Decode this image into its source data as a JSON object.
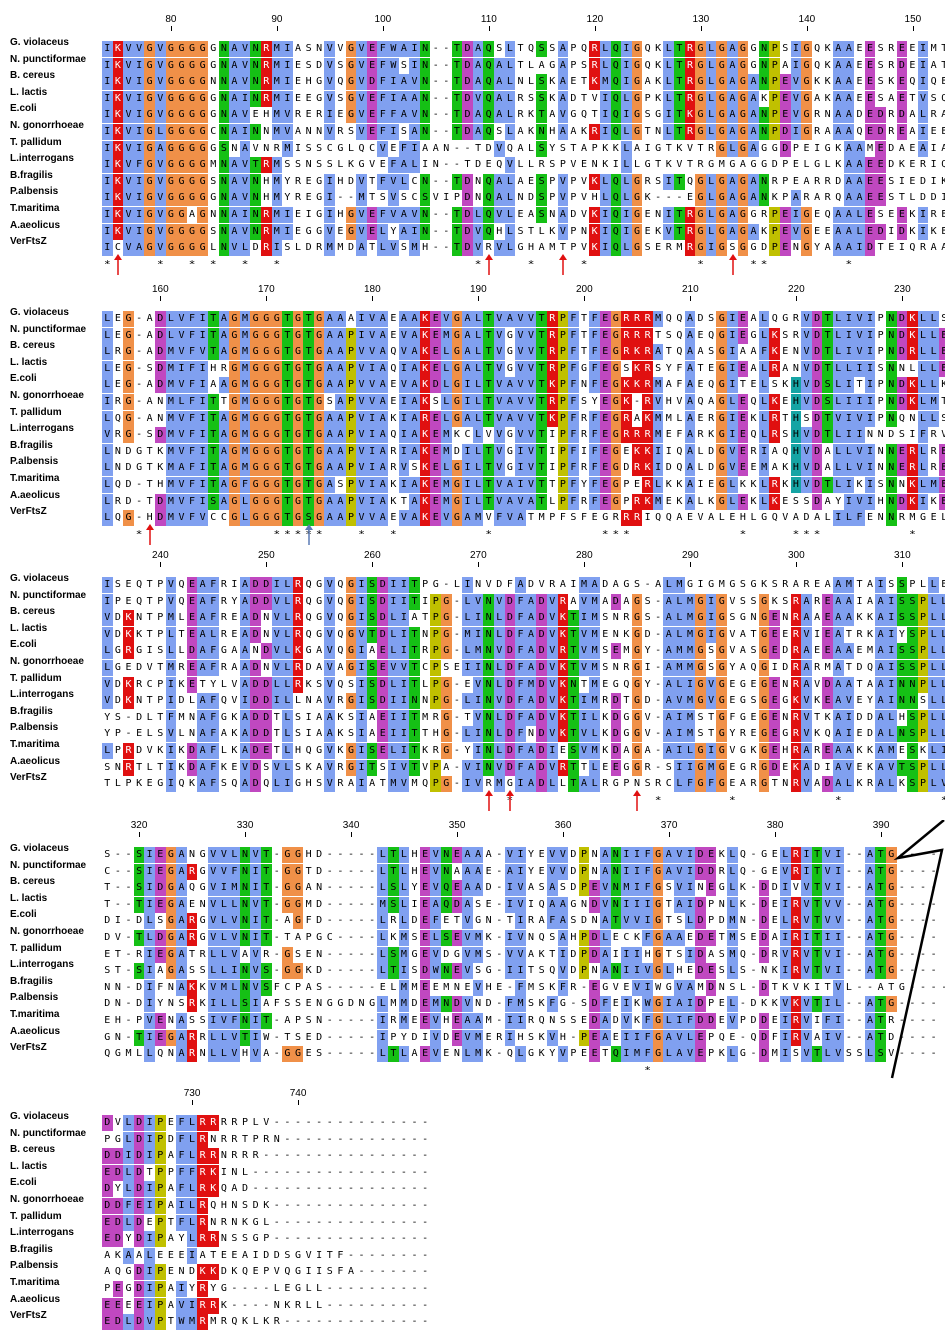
{
  "species": [
    "G. violaceus",
    "N. punctiformae",
    "B. cereus",
    "L. lactis",
    "E.coli",
    "N. gonorrhoeae",
    "T. pallidum",
    "L.interrogans",
    "B.fragilis",
    "P.albensis",
    "T.maritima",
    "A.aeolicus",
    "VerFtsZ"
  ],
  "blocks": [
    {
      "start": 74,
      "positions": [
        "80",
        "90",
        "100",
        "110",
        "120",
        "130",
        "140",
        "150"
      ],
      "rows": [
        "IKVVGVGGGGGNAVNRMIASNVVGVEFWAIN--TDAQSLTQSSAPQRLQIGQKLTRGLGAGGNPSIGQKAAEESREEIMTA",
        "IKVIGVGGGGGNAVNRMIESDVSGVEFWSIN--TDAQALTLAGAPSRLQIGQKLTRGLGAGGNPAIGQKAAEESRDEIATA",
        "IKVIGVGGGGNNAVNRMIEHGVQGVDFIAVN--TDAQALNLSKAETKMQIGAKLTRGLGAGANPEVGKKAAEESKEQIQEA",
        "IKVIGVGGGGGNAINRMIEEGVSGVEFIAAN--TDVQALRSSKADTVIQLGPKLTRGLGAGAKPEVGAKAAEESAETVSQA",
        "IKVIGVGGGGGNAVEHMVRERIEGVEFFAVN--TDAQALRKTAVGQTIQIGSGITKGLGAGANPEVGRNAADEDRDALRAA",
        "IKVIGLGGGGCNAINNMVANNVRSVEFISAN--TDAQSLAKNHAAKRIQLGTNLTRGLGAGANPDIGRAAAQEDREAIEEA",
        "IKVIGAGGGGGSNAVNRMISSCGLQCVEFIAAN--TDVQALSYSTAPKKLAIGTKVTRGLGAGGDPEIGKAAMEDAEAIASA",
        "IKVFGVGGGGMNAVTRMSSNSSLKGVEFALIN--TDEQVLLRSPVENKILLGTKVTRGMGAGGDPELGLKAAEEDKERIQS",
        "IKVIGVGGGGSNAVNHMYREGIHDVTFVLCN--TDNQALAESPVPVKLQLGRSITQGLGAGANRPEARRDAAEESIEDIKTL",
        "IKVIGVGGGGGNAVNHMYREGI--MTSVSCSVIPDNQALNDSPVPVHLQLGK---EGLGAGANKPARARQAAEESTLDDIKGM",
        "IKVIGVGGAGNNAINRMIEIGIHGVEFVAVN--TDLQVLEASNADVKIQIGENITRGLGAGGRPEIGEQAALESEEKIREV",
        "IKVIGVGGGGSNAVNRMIEGGVEGVELYAIN--TDVQHLSTLKVPNKIQIGEKVTRGLGAGAKPEVGEEAALEDIDKIKE",
        "ICVAGVGGGGLNVLDRISLDRMMDATLVSMH--TDVRVLGHAMTPVKIQLGSERMRGIGSGGDPENGYAAAIDTEIQRAA"
      ],
      "consensus": "*    *  * *  *  *                  *    *    *          *    **       *        "
    },
    {
      "start": 155,
      "positions": [
        "160",
        "170",
        "180",
        "190",
        "200",
        "210",
        "220",
        "230"
      ],
      "rows": [
        "LEG-ADLVFITAGMGGGTGTGAAAIVAEAAKEVGALTVAVVTRPFTFEGRRRMQQADSGIEALQGRVDTLIVIPNDKLLSV",
        "LEG-ADLVFITAGMGGGTGTGAAPIVAEVAKEMGALTVGVVTRPFTFEGRRRTSQAEQGIEGLKSRVDTLIVIPNDKLLEV",
        "LRG-ADMVFVTAGMGGGTGTGAAPVVAQVAKELGALTVGVVTRPFTFEGRKRATQAASGIAAFKENVDTLIVIPNDRLLE",
        "LEG-SDMIFIHRGMGGGTGTGAAPVIAQIAKELGALTVGVVTRPFGFEGSKRSYFATEGIEALRANVDTLLIISNNLLLE",
        "LEG-ADMVFIAAGMGGGTGTGAAPVVAEVAKDLGILTVAVVTKPFNFEGKKRMAFAEQGITELSKHVDSLITIPNDKLLKV",
        "IRG-ANMLFITTGMGGGTGTGSAPVVAEIAKSLGILTVAVVTRPFSYEGK-RVHVAQAGLEQLKEHVDSLIIIPNDKLMTA",
        "LQG-ANMVFITAGMGGGTGTGAAPVIAKIARELGALTVAVVTKPFRFEGRAKMMLAERGIEKLRTHSDTVIVIPNQNLLSV",
        "VRG-SDMVFITAGMGGGTGTGAAPVIAQIAKEMKCLVVGVVTIPFRFEGRRRMEFARKGIEQLRSHVDTLIINNDSIFRV",
        "LNDGTKMVFITAGMGGGTGTGAAPVIARIAKEMDILTVGIVTIPFIFEGEKKIIQALDGVERIAQHVDALLVINNERLRE",
        "LNDGTKMAFITAGMGGGTGTGAAPVIARVSKELGILTVGIVTIPFRFEGDRKIDQALDGVEEMAKHVDALLVINNERLRE",
        "LQD-THMVFITAGFGGGTGTGASPVIAKIAKEMGILTVAIVTTPFYFEGPERLKKAIEGLKKLRKHVDTLIKISNNKLMEE",
        "LRD-TDMVFISAGLGGGTGTGAAPVIAKTAKEMGILTVAVATLPFRFEGPRKMEKALKGLEKLKESSDAYIVIHNDKIKEL",
        "LQG-HDMVFVCCGLGGGTGSGAAPVVAEVAKEVGAMVFVATMPFSFEGRRRIQQAEVALEHLGQVADALILFENNRMGEL"
      ],
      "consensus": "   *            *****   *  *        *          ***          *    ***        *     "
    },
    {
      "start": 235,
      "positions": [
        "240",
        "250",
        "260",
        "270",
        "280",
        "290",
        "300",
        "310"
      ],
      "rows": [
        "ISEQTPVQEAFRIADDILRQGVQGISDIITPG-LINVDFADVRAIMADAGS-ALMGIGMGSGKSRAREAAMTAISSPLLE",
        "IPEQTPVQEAFRYADDVLRQGVQGISDIITIPG-LVNVDFADVRAVMADAGS-ALMGIGVSSGKSRAREAAIAAISSPLLE",
        "VDKNTPMLEAFREADNVLRQGVQGISDLIATPG-LINLDFADVKTIMSNRGS-ALMGIGSGNGENRAAEAAKKAISSPLLE",
        "VDKKTPLTEALREADNVLRQGVQGVTDLITNPG-MINLDFADVKTVMENKGD-ALMGIGVATGEERVIEATRKAIYSPLLE",
        "LGRGISLLDAFGAANDVLKGAVQGIAELITRPG-LMNVDFADVRTVMSEMGY-AMMGSGVASGEDRAEEAAEMAISSPLLE",
        "LGEDVTMREAFRAADNVLRDAVAGISEVVTCPSEIINLDFADVKTVMSNRGI-AMMGSGYAQGIDRARMATDQAISSPLLD",
        "VDKRCPIKETYLVADDLLRKSVQSISDLITLPG-EVNLDFMDVKNTMEGQGY-ALIGVGEGEGENRAVDAATAAINNPLLE",
        "VDKNTPIDLAFQVIDDILLNAVRGISDIINNPG-LINVDFADVKTIMRDTGD-AVMGVGEGSGEGKVKEAVEYAINNSLLE",
        "YS-DLTFMNAFGKADDTLSIAAKSIAEIITMRG-TVNLDFADVKTILKDGGV-AIMSTGFGEGENRVTKAIDDALHSPLLN",
        "YP-ELSVLNAFAKADDTLSIAAKSIAEIITTHG-LINLDFNDVKTVLKDGGV-AIMSTGYREGEGRVKQAIEDALNSPLLN",
        "LPRDVKIKDAFLKADETLHQGVKGISELITKRG-YINLDFADIESVMKDAGA-AILGIGVGKGEHRAREAAKKAMESKLI",
        "SNRTLTIKDAFKEVDSVLSKAVRGITSIVTVPA-VINVDFADVRTTLEEGGR-SIIGMGEGRGDEKADIAVEKAVTSPLLE",
        "TLPKEGIQKAFSQADQLIGHSVRAIATMVMQPG-IVRMGIADLLTALRGPNSRCLFGFGEARGTNRVADALKRALKSPLVN"
      ],
      "consensus": "                                      *             *      *         *         *    *  *   *  "
    },
    {
      "start": 317,
      "positions": [
        "320",
        "330",
        "340",
        "350",
        "360",
        "370",
        "380",
        "390"
      ],
      "rows": [
        "S--SIEGANGVVLNVT-GGHD-----LTLHEVNEAAA-VIYEVVDPNANIIFGAVIDEKLQ-GELRITVI--ATG----",
        "C--SIEGARGVVFNIT-GGTD-----LTLHEVNAAAE-AIYEVVDPNANIIFGAVIDDRLQ-GEVRITVI--ATG----",
        "T--SIDGAQGVIMNIT-GGAN-----LSLYEVQEAAD-IVASASDPEVNMIFGSVINEGLK-DDIVVTVI--ATG----",
        "T--TIEGAENVLLNVT-GGMD-----MSLIEAQDASE-IVIQAAGNDVNIIIGTAIDPNLK-DEIRVTVV--ATG----",
        "DI-DLSGARGVLVNIT-AGFD-----LRLDEFETVGN-TIRAFASDNATVVIGTSLDPDMN-DELRVTVV--ATG----",
        "DV-TLDGARGVLVNIT-TAPGC----LKMSELSEVMK-IVNQSAHPDLECKFGAAEDETMSEDAIRITII--ATG----",
        "ET-RIEGATRLLVAVR-GSEN-----LSMGEVDGVMS-VVAKTIDPDAIIIHGTSIDASMQ-DRVRVTVI--ATG----",
        "ST-SIAGASSLLINVS-GGKD-----LTISDWNEVSG-IITSQVDPNANIIVGLHEDESLS-NKIRVTVI--ATG----",
        "NN-DIFNAKKVMLNVSFCPAS-----ELMMEEMNEVHE-FMSKFR-EGVEVIWGVAMDNSL-DTKVKITVL--ATG----",
        "DN-DIYNSRKILLSIAFSSENGGDNGLMMDEMNDVND-FMSKFG-SDFEIKWGIAIDPEL-DKKVKVTIL--ATG----",
        "EH-PVENASSIVFNIT-APSN-----IRMEEVHEAAM-IIRQNSSEDADVKFGLIFDDEVPDDEIRVIFI--ATR----",
        "GN-TIEGARRLLVTIW-TSED-----IPYDIVDEVMERIHSKVH-PEAEIIFGAVLEPQE-QDFIRVAIV--ATD----",
        "QGMLLQNARNLLVHVA-GGES-----LTLAEVENLMK-QLGKYVPEETQIMFGLAVEPKLG-DMISVTLVSSLSV----"
      ],
      "consensus": "                                                   *                           "
    },
    {
      "start": 722,
      "positions": [
        "730",
        "740"
      ],
      "rows": [
        "DVLDIPEFLRRRRPLV---------------",
        "PGLDIPDFLRNRRTPRN--------------",
        "DDIDIPAFLRRNRRR----------------",
        "EDLDTPPFFRKINL-----------------",
        "DYLDIPAFLRKQAD-----------------",
        "DDFEIPAILRQHNSDK---------------",
        "EDLDEPTFLRNRNKGL---------------",
        "EDYDIPAYLRRNSSGP---------------",
        "AKAALEEEIATEEAIDDSGVITF--------",
        "AQGDIPENDKKDKQEPVQGIISFA-------",
        "PEGDIPAIYRYG----LEGLL----------",
        "EEEEIPAVIRRK----NKRLL----------",
        "EDLDVPTWMRMRQKLKR--------------"
      ],
      "consensus": ""
    }
  ],
  "markers": {
    "red_arrow_color": "#E01010",
    "blue_arrow_color": "#5B7BB5"
  }
}
